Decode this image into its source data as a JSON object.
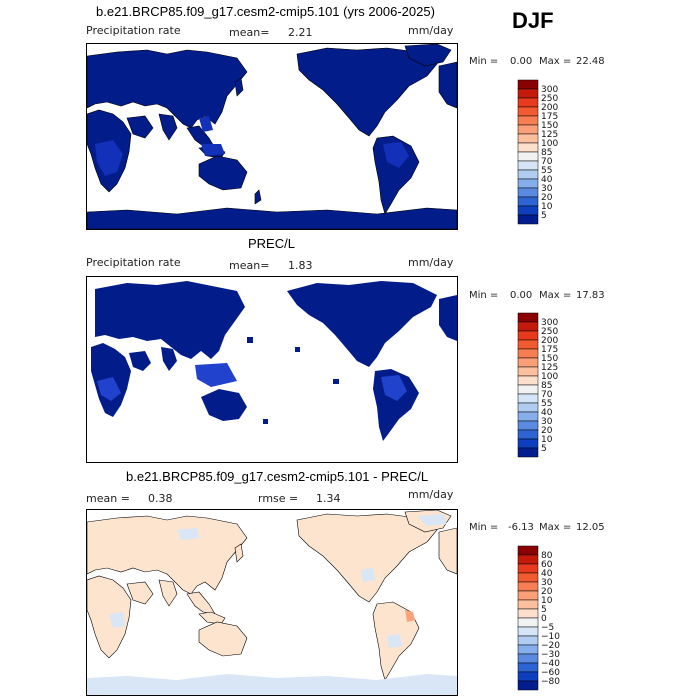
{
  "season": "DJF",
  "panels": [
    {
      "title": "b.e21.BRCP85.f09_g17.cesm2-cmip5.101 (yrs 2006-2025)",
      "left_label": "Precipitation rate",
      "mean_label": "mean=",
      "mean_value": "2.21",
      "units": "mm/day",
      "min_label": "Min =",
      "min_value": "0.00",
      "max_label": "Max =",
      "max_value": "22.48",
      "colorbar_levels": [
        "300",
        "250",
        "200",
        "175",
        "150",
        "125",
        "100",
        "85",
        "70",
        "55",
        "40",
        "30",
        "20",
        "10",
        "5"
      ],
      "colorbar_colors": [
        "#8b0000",
        "#c41a0b",
        "#e83a1c",
        "#f25a30",
        "#f77e52",
        "#fa9f78",
        "#fcc09f",
        "#fde0cc",
        "#f2f2f2",
        "#d5e5f7",
        "#b0ccf1",
        "#86aeea",
        "#5a8be0",
        "#2e63d4",
        "#0e3fbf",
        "#021e8e"
      ]
    },
    {
      "title": "PREC/L",
      "left_label": "Precipitation rate",
      "mean_label": "mean=",
      "mean_value": "1.83",
      "units": "mm/day",
      "min_label": "Min =",
      "min_value": "0.00",
      "max_label": "Max =",
      "max_value": "17.83",
      "colorbar_levels": [
        "300",
        "250",
        "200",
        "175",
        "150",
        "125",
        "100",
        "85",
        "70",
        "55",
        "40",
        "30",
        "20",
        "10",
        "5"
      ],
      "colorbar_colors": [
        "#8b0000",
        "#c41a0b",
        "#e83a1c",
        "#f25a30",
        "#f77e52",
        "#fa9f78",
        "#fcc09f",
        "#fde0cc",
        "#f2f2f2",
        "#d5e5f7",
        "#b0ccf1",
        "#86aeea",
        "#5a8be0",
        "#2e63d4",
        "#0e3fbf",
        "#021e8e"
      ]
    },
    {
      "title": "b.e21.BRCP85.f09_g17.cesm2-cmip5.101 - PREC/L",
      "mean_label": "mean =",
      "mean_value": "0.38",
      "rmse_label": "rmse =",
      "rmse_value": "1.34",
      "units": "mm/day",
      "min_label": "Min =",
      "min_value": "-6.13",
      "max_label": "Max =",
      "max_value": "12.05",
      "colorbar_levels": [
        "80",
        "60",
        "40",
        "30",
        "20",
        "10",
        "5",
        "0",
        "−5",
        "−10",
        "−20",
        "−30",
        "−40",
        "−60",
        "−80"
      ],
      "colorbar_colors": [
        "#8b0000",
        "#c41a0b",
        "#e83a1c",
        "#f25a30",
        "#f77e52",
        "#fa9f78",
        "#fcc09f",
        "#fde0cc",
        "#f2f2f2",
        "#d5e5f7",
        "#b0ccf1",
        "#86aeea",
        "#5a8be0",
        "#2e63d4",
        "#0e3fbf",
        "#021e8e"
      ]
    }
  ],
  "chart_data": [
    {
      "type": "heatmap",
      "title": "b.e21.BRCP85.f09_g17.cesm2-cmip5.101 (yrs 2006-2025)",
      "variable": "Precipitation rate",
      "units": "mm/day",
      "mean": 2.21,
      "min": 0.0,
      "max": 22.48,
      "contour_levels": [
        5,
        10,
        20,
        30,
        40,
        55,
        70,
        85,
        100,
        125,
        150,
        175,
        200,
        250,
        300
      ]
    },
    {
      "type": "heatmap",
      "title": "PREC/L",
      "variable": "Precipitation rate",
      "units": "mm/day",
      "mean": 1.83,
      "min": 0.0,
      "max": 17.83,
      "contour_levels": [
        5,
        10,
        20,
        30,
        40,
        55,
        70,
        85,
        100,
        125,
        150,
        175,
        200,
        250,
        300
      ]
    },
    {
      "type": "heatmap",
      "title": "b.e21.BRCP85.f09_g17.cesm2-cmip5.101 - PREC/L",
      "units": "mm/day",
      "mean": 0.38,
      "rmse": 1.34,
      "min": -6.13,
      "max": 12.05,
      "contour_levels": [
        -80,
        -60,
        -40,
        -30,
        -20,
        -10,
        -5,
        0,
        5,
        10,
        20,
        30,
        40,
        60,
        80
      ]
    }
  ]
}
